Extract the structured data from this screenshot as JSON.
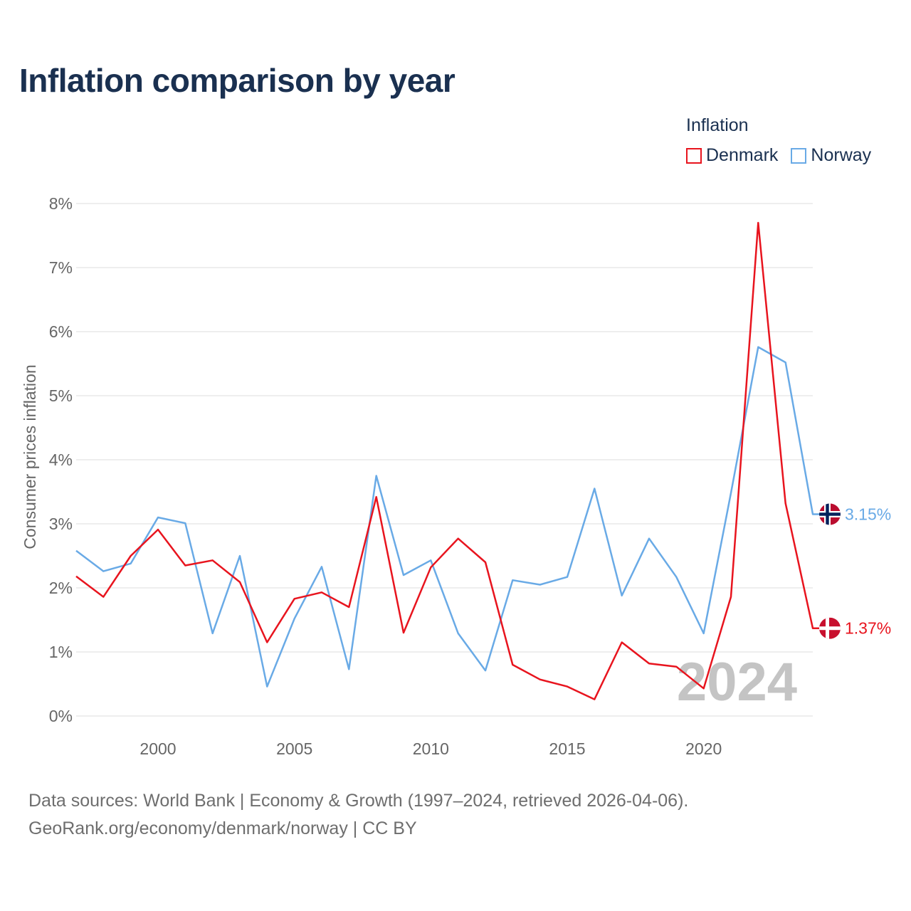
{
  "colors": {
    "denmark": "#e8141e",
    "norway": "#69aae6",
    "grid": "#e8e8e8",
    "axis_text": "#666666",
    "watermark": "#c4c4c4"
  },
  "chart_data": {
    "type": "line",
    "title": "Inflation comparison by year",
    "legend_title": "Inflation",
    "legend_position": "top-right",
    "xlabel": "",
    "ylabel": "Consumer prices inflation",
    "xlim": [
      1997,
      2024
    ],
    "ylim": [
      0,
      8
    ],
    "x_ticks": [
      2000,
      2005,
      2010,
      2015,
      2020
    ],
    "y_ticks": [
      0,
      1,
      2,
      3,
      4,
      5,
      6,
      7,
      8
    ],
    "y_tick_labels": [
      "0%",
      "1%",
      "2%",
      "3%",
      "4%",
      "5%",
      "6%",
      "7%",
      "8%"
    ],
    "grid": true,
    "year_watermark": "2024",
    "x": [
      1997,
      1998,
      1999,
      2000,
      2001,
      2002,
      2003,
      2004,
      2005,
      2006,
      2007,
      2008,
      2009,
      2010,
      2011,
      2012,
      2013,
      2014,
      2015,
      2016,
      2017,
      2018,
      2019,
      2020,
      2021,
      2022,
      2023,
      2024
    ],
    "series": [
      {
        "name": "Denmark",
        "key": "denmark",
        "end_label": "1.37%",
        "values": [
          2.18,
          1.86,
          2.5,
          2.91,
          2.35,
          2.43,
          2.09,
          1.15,
          1.83,
          1.93,
          1.7,
          3.42,
          1.3,
          2.32,
          2.77,
          2.4,
          0.8,
          0.57,
          0.46,
          0.26,
          1.15,
          0.82,
          0.77,
          0.43,
          1.86,
          7.7,
          3.32,
          1.37
        ]
      },
      {
        "name": "Norway",
        "key": "norway",
        "end_label": "3.15%",
        "values": [
          2.58,
          2.26,
          2.38,
          3.1,
          3.01,
          1.29,
          2.5,
          0.46,
          1.52,
          2.33,
          0.73,
          3.75,
          2.2,
          2.43,
          1.29,
          0.71,
          2.12,
          2.05,
          2.17,
          3.55,
          1.88,
          2.77,
          2.17,
          1.29,
          3.48,
          5.76,
          5.52,
          3.15
        ]
      }
    ]
  },
  "footer": {
    "line1": "Data sources: World Bank | Economy & Growth (1997–2024, retrieved 2026-04-06).",
    "line2": "GeoRank.org/economy/denmark/norway | CC BY"
  }
}
